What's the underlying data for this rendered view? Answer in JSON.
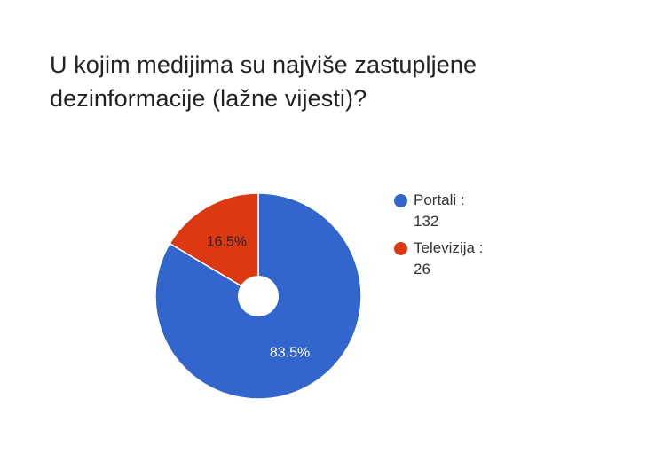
{
  "title_lines": [
    "U kojim medijima su najviše zastupljene",
    "dezinformacije (lažne vijesti)?"
  ],
  "chart_data": {
    "type": "pie",
    "title": "U kojim medijima su najviše zastupljene dezinformacije (lažne vijesti)?",
    "categories": [
      "Portali",
      "Televizija"
    ],
    "values": [
      132,
      26
    ],
    "percent_labels": [
      "83.5%",
      "16.5%"
    ],
    "colors": [
      "#3366cc",
      "#dc3912"
    ],
    "legend_position": "right",
    "legend": [
      {
        "label": "Portali :",
        "value": "132"
      },
      {
        "label": "Televizija :",
        "value": "26"
      }
    ]
  }
}
